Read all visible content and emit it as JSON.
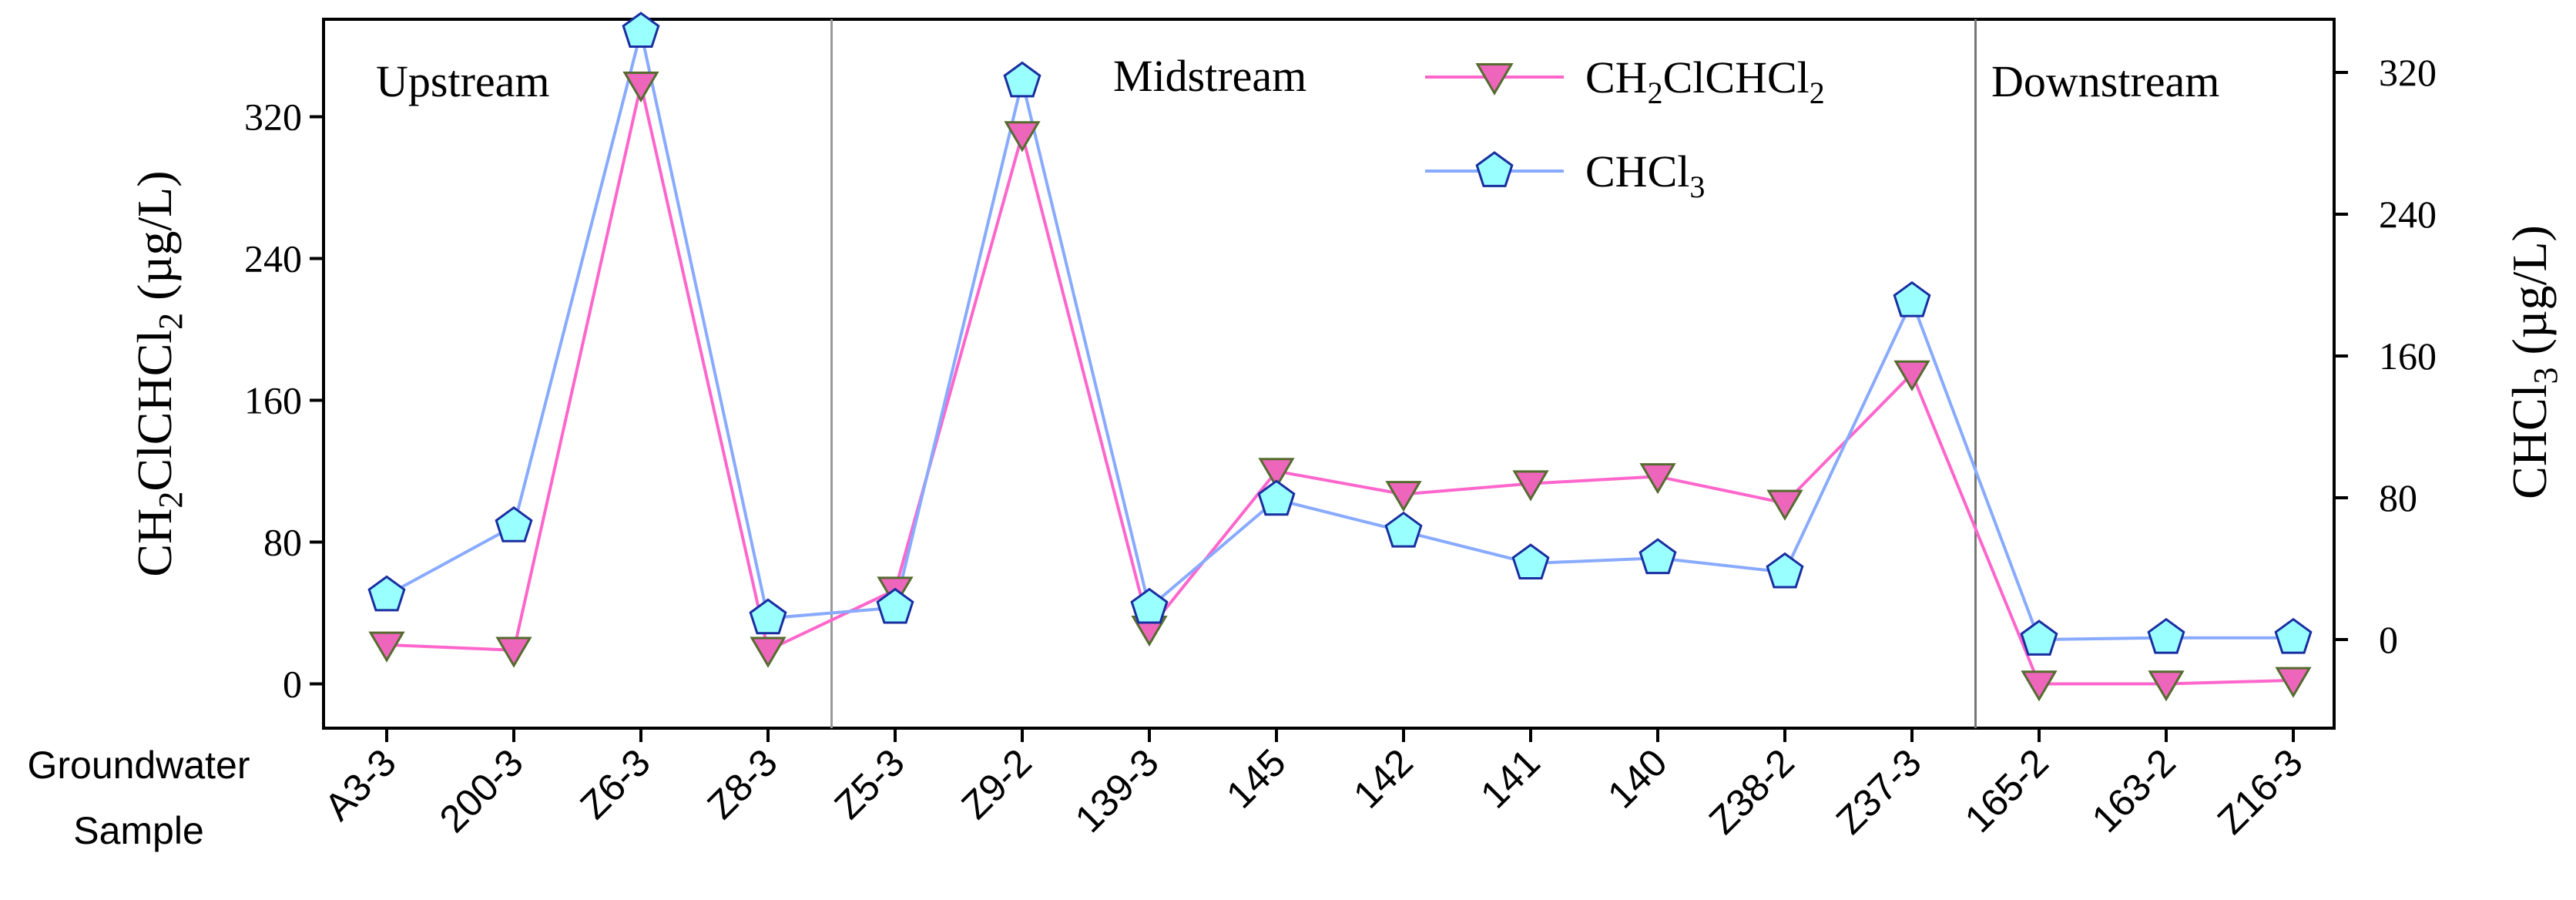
{
  "chart_data": {
    "type": "line",
    "categories": [
      "A3-3",
      "200-3",
      "Z6-3",
      "Z8-3",
      "Z5-3",
      "Z9-2",
      "139-3",
      "145",
      "142",
      "141",
      "140",
      "Z38-2",
      "Z37-3",
      "165-2",
      "163-2",
      "Z16-3"
    ],
    "xlabel": [
      "Groundwater",
      "Sample"
    ],
    "y_left": {
      "label_main": "CH",
      "label_sub1": "2",
      "label_mid": "ClCHCl",
      "label_sub2": "2",
      "label_unit": " (µg/L)",
      "range": [
        -25,
        375
      ],
      "ticks": [
        "0",
        "80",
        "160",
        "240",
        "320"
      ]
    },
    "y_right": {
      "label_main": "CHCl",
      "label_sub": "3",
      "label_unit": " (µg/L)",
      "range": [
        -50,
        350
      ],
      "ticks": [
        "0",
        "80",
        "160",
        "240",
        "320"
      ]
    },
    "regions": [
      "Upstream",
      "Midstream",
      "Downstream"
    ],
    "series": [
      {
        "name_main": "CH",
        "name_sub1": "2",
        "name_mid": "ClCHCl",
        "name_sub2": "2",
        "axis": "left",
        "color": "#ff66cc",
        "marker": "triangle-down",
        "marker_fill": "#ee66bb",
        "marker_stroke": "#556b2f",
        "values": [
          22,
          19,
          338,
          19,
          53,
          310,
          31,
          120,
          107,
          113,
          117,
          102,
          175,
          0,
          0,
          2
        ]
      },
      {
        "name_main": "CHCl",
        "name_sub": "3",
        "axis": "right",
        "color": "#88aaff",
        "marker": "pentagon",
        "marker_fill": "#99ffff",
        "marker_stroke": "#1a2ea0",
        "values": [
          25,
          64,
          343,
          12,
          18,
          315,
          18,
          79,
          61,
          43,
          46,
          38,
          191,
          0,
          1,
          1
        ]
      }
    ]
  }
}
